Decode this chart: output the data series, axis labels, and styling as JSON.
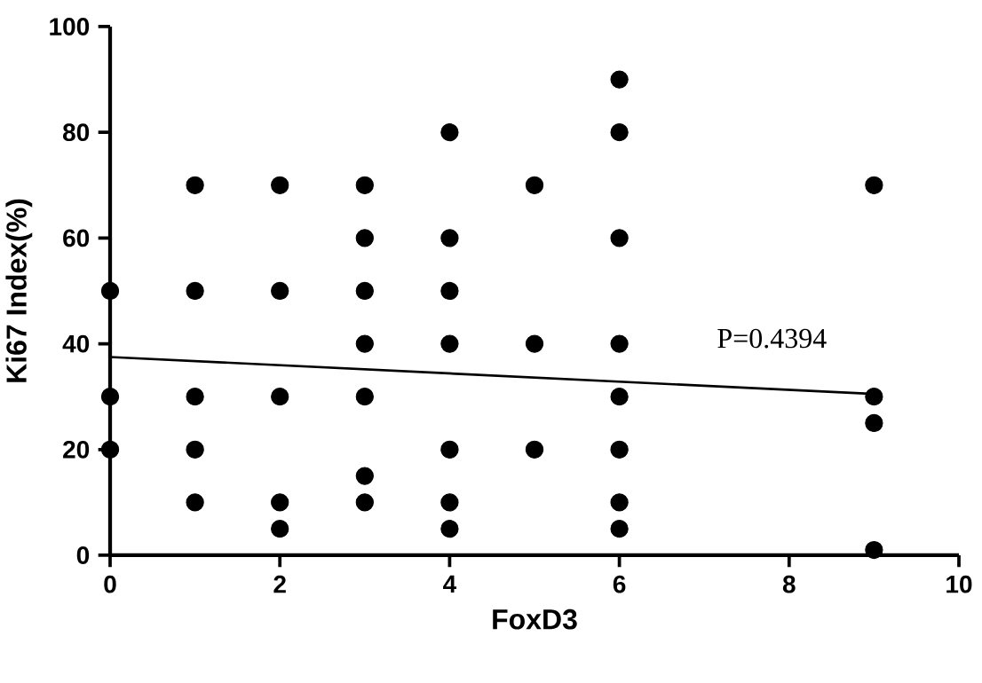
{
  "chart_data": {
    "type": "scatter",
    "xlabel": "FoxD3",
    "ylabel": "Ki67 Index(%)",
    "annotations": [
      "P=0.4394"
    ],
    "xlim": [
      0,
      10
    ],
    "ylim": [
      0,
      100
    ],
    "xticks": [
      0,
      2,
      4,
      6,
      8,
      10
    ],
    "yticks": [
      0,
      20,
      40,
      60,
      80,
      100
    ],
    "series": [
      {
        "marker": "circle",
        "color": "#000000",
        "x": [
          0,
          0,
          0,
          1,
          1,
          1,
          1,
          1,
          2,
          2,
          2,
          2,
          2,
          3,
          3,
          3,
          3,
          3,
          3,
          3,
          4,
          4,
          4,
          4,
          4,
          4,
          4,
          5,
          5,
          5,
          6,
          6,
          6,
          6,
          6,
          6,
          6,
          6,
          9,
          9,
          9,
          9
        ],
        "values": [
          50,
          30,
          20,
          70,
          50,
          30,
          20,
          10,
          70,
          50,
          30,
          10,
          5,
          70,
          60,
          50,
          40,
          30,
          15,
          10,
          80,
          60,
          50,
          40,
          20,
          10,
          5,
          70,
          40,
          20,
          90,
          80,
          60,
          40,
          30,
          20,
          10,
          5,
          70,
          30,
          25,
          1
        ]
      },
      {
        "type": "line",
        "marker": "none",
        "color": "#000000",
        "x": [
          0,
          9
        ],
        "values": [
          37.5,
          30.5
        ]
      }
    ]
  }
}
